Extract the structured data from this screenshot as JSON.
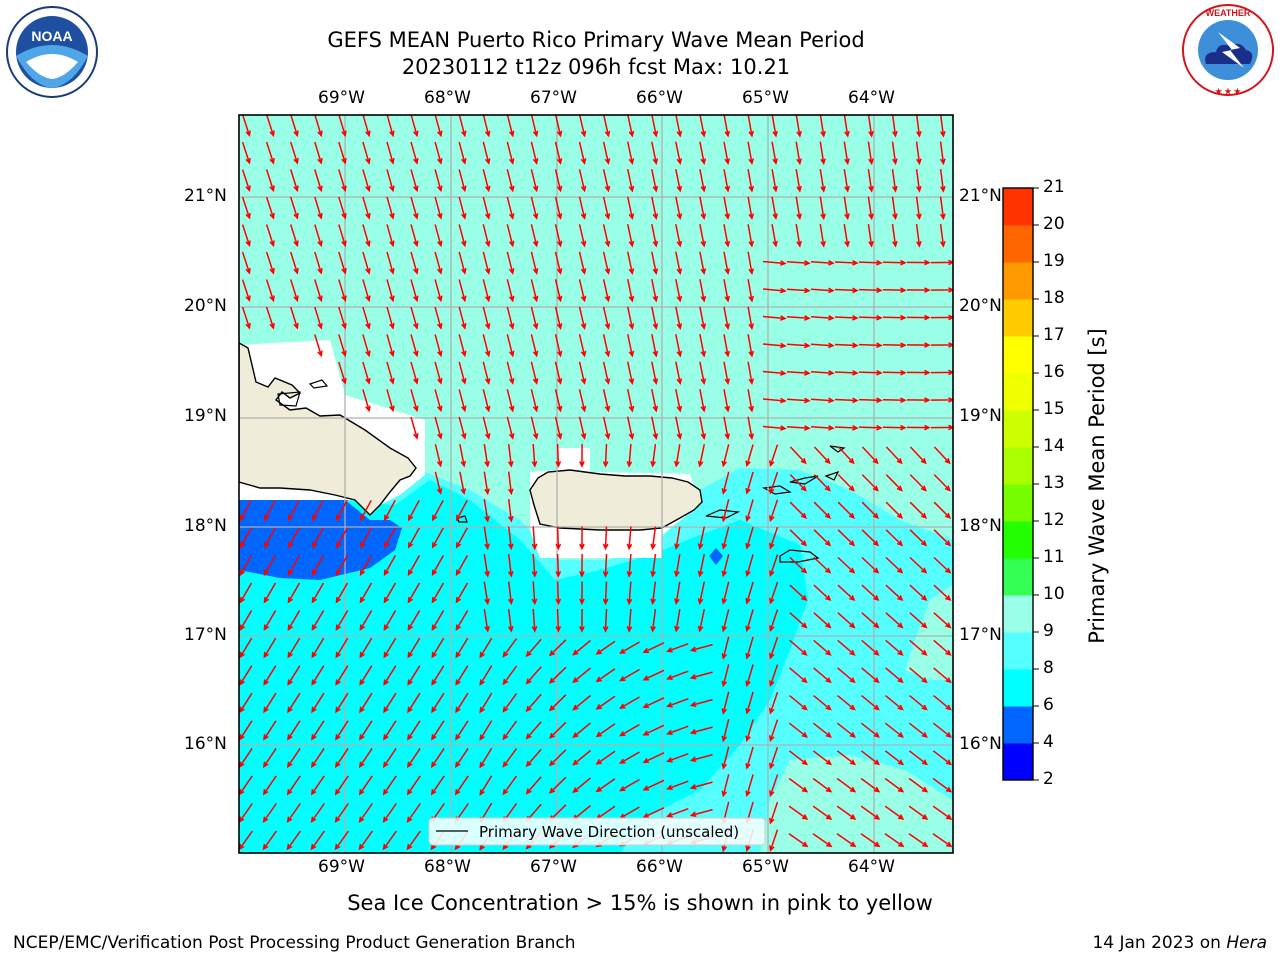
{
  "title": {
    "line1": "GEFS MEAN Puerto Rico Primary Wave Mean Period",
    "line2": "20230112 t12z 096h fcst   Max: 10.21"
  },
  "axes": {
    "lon_labels": [
      "69°W",
      "68°W",
      "67°W",
      "66°W",
      "65°W",
      "64°W"
    ],
    "lat_labels": [
      "21°N",
      "20°N",
      "19°N",
      "18°N",
      "17°N",
      "16°N"
    ]
  },
  "legend": {
    "label": "Primary Wave Direction (unscaled)"
  },
  "colorbar": {
    "label": "Primary Wave Mean Period [s]",
    "ticks": [
      "2",
      "4",
      "6",
      "8",
      "9",
      "10",
      "11",
      "12",
      "13",
      "14",
      "15",
      "16",
      "17",
      "18",
      "19",
      "20",
      "21"
    ],
    "colors": [
      "#0000ff",
      "#0066ff",
      "#00ffff",
      "#55ffff",
      "#99ffe6",
      "#33ff55",
      "#22ff00",
      "#77ff00",
      "#aaff00",
      "#ccff00",
      "#eeff00",
      "#ffff00",
      "#ffcc00",
      "#ff9900",
      "#ff6600",
      "#ff3300",
      "#ff0000"
    ]
  },
  "note": "Sea Ice Concentration > 15% is shown in pink to yellow",
  "footer": {
    "left": "NCEP/EMC/Verification Post Processing Product Generation Branch",
    "date": "14 Jan 2023 on ",
    "machine": "Hera"
  },
  "logos": {
    "left": "NOAA",
    "right": "NATIONAL WEATHER SERVICE"
  },
  "map_colors": {
    "land": "#efedd9",
    "arrow": "#ff0000",
    "grid": "#b0b0b0"
  }
}
